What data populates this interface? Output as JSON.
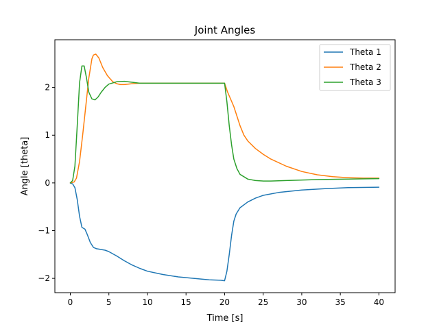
{
  "chart_data": {
    "type": "line",
    "title": "Joint Angles",
    "xlabel": "Time [s]",
    "ylabel": "Angle [theta]",
    "xlim": [
      -2,
      42.1
    ],
    "ylim": [
      -2.3,
      3.0
    ],
    "xticks": [
      0,
      5,
      10,
      15,
      20,
      25,
      30,
      35,
      40
    ],
    "xtick_labels": [
      "0",
      "5",
      "10",
      "15",
      "20",
      "25",
      "30",
      "35",
      "40"
    ],
    "yticks": [
      -2,
      -1,
      0,
      1,
      2
    ],
    "ytick_labels": [
      "−2",
      "−1",
      "0",
      "1",
      "2"
    ],
    "legend_position": "top-right",
    "series": [
      {
        "name": "Theta 1",
        "color": "#1f77b4",
        "x": [
          0,
          0.3,
          0.6,
          0.9,
          1.2,
          1.5,
          1.7,
          1.9,
          2.2,
          2.6,
          3.0,
          3.4,
          3.8,
          4.5,
          5.0,
          6.0,
          7.0,
          8.0,
          9.0,
          10.0,
          12.0,
          14.0,
          16.0,
          18.0,
          19.5,
          20.0,
          20.3,
          20.6,
          20.9,
          21.2,
          21.5,
          22.0,
          23.0,
          24.0,
          25.0,
          27.0,
          30.0,
          33.0,
          36.0,
          40.0
        ],
        "y": [
          0,
          -0.02,
          -0.1,
          -0.35,
          -0.7,
          -0.93,
          -0.95,
          -0.97,
          -1.08,
          -1.25,
          -1.35,
          -1.38,
          -1.39,
          -1.41,
          -1.44,
          -1.53,
          -1.63,
          -1.72,
          -1.79,
          -1.85,
          -1.92,
          -1.97,
          -2.0,
          -2.03,
          -2.04,
          -2.05,
          -1.85,
          -1.5,
          -1.1,
          -0.8,
          -0.65,
          -0.52,
          -0.4,
          -0.32,
          -0.26,
          -0.2,
          -0.15,
          -0.12,
          -0.1,
          -0.09
        ]
      },
      {
        "name": "Theta 2",
        "color": "#ff7f0e",
        "x": [
          0,
          0.5,
          0.8,
          1.2,
          1.6,
          2.0,
          2.4,
          2.8,
          3.0,
          3.3,
          3.7,
          4.2,
          4.8,
          5.5,
          6.0,
          6.5,
          7.0,
          8.0,
          9.0,
          10.0,
          12.0,
          15.0,
          18.0,
          20.0,
          20.4,
          20.8,
          21.2,
          21.6,
          22.0,
          22.5,
          23.0,
          24.0,
          25.0,
          26.0,
          28.0,
          30.0,
          32.0,
          34.0,
          36.0,
          38.0,
          40.0
        ],
        "y": [
          0,
          0.02,
          0.1,
          0.45,
          1.0,
          1.6,
          2.2,
          2.6,
          2.68,
          2.7,
          2.62,
          2.42,
          2.25,
          2.12,
          2.08,
          2.06,
          2.06,
          2.08,
          2.09,
          2.09,
          2.09,
          2.09,
          2.09,
          2.09,
          1.9,
          1.75,
          1.6,
          1.4,
          1.2,
          1.0,
          0.88,
          0.72,
          0.6,
          0.5,
          0.35,
          0.24,
          0.17,
          0.13,
          0.11,
          0.1,
          0.1
        ]
      },
      {
        "name": "Theta 3",
        "color": "#2ca02c",
        "x": [
          0,
          0.3,
          0.6,
          0.9,
          1.2,
          1.5,
          1.8,
          2.1,
          2.4,
          2.8,
          3.2,
          3.6,
          4.0,
          4.5,
          5.0,
          6.0,
          7.0,
          8.0,
          9.0,
          10.0,
          15.0,
          19.5,
          20.0,
          20.3,
          20.6,
          20.9,
          21.2,
          21.6,
          22.0,
          23.0,
          24.0,
          25.0,
          26.0,
          28.0,
          32.0,
          36.0,
          40.0
        ],
        "y": [
          0,
          0.05,
          0.35,
          1.2,
          2.1,
          2.45,
          2.45,
          2.2,
          1.9,
          1.76,
          1.74,
          1.8,
          1.9,
          2.0,
          2.07,
          2.12,
          2.13,
          2.11,
          2.09,
          2.09,
          2.09,
          2.09,
          2.09,
          1.7,
          1.2,
          0.8,
          0.5,
          0.3,
          0.18,
          0.08,
          0.05,
          0.04,
          0.04,
          0.05,
          0.07,
          0.08,
          0.09
        ]
      }
    ]
  }
}
